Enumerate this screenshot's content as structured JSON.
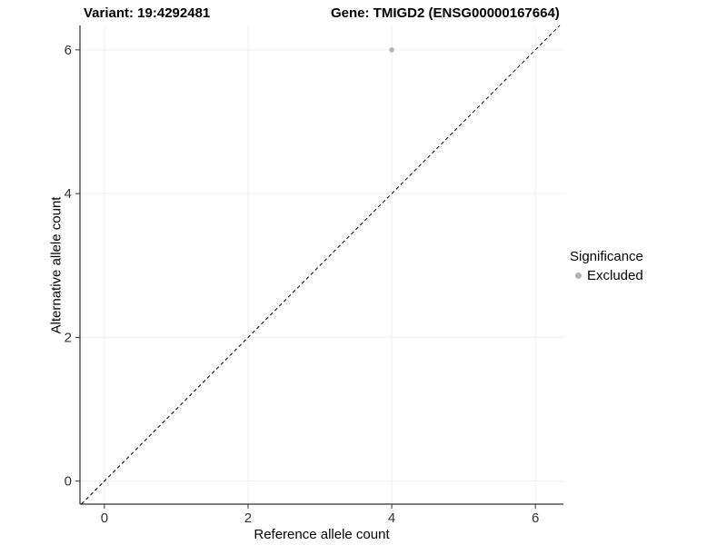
{
  "chart_data": {
    "type": "scatter",
    "titles": {
      "left": "Variant: 19:4292481",
      "right": "Gene: TMIGD2 (ENSG00000167664)"
    },
    "xlabel": "Reference allele count",
    "ylabel": "Alternative allele count",
    "xlim": [
      -0.34,
      6.39
    ],
    "ylim": [
      -0.32,
      6.34
    ],
    "xticks": [
      0,
      2,
      4,
      6
    ],
    "yticks": [
      0,
      2,
      4,
      6
    ],
    "grid": true,
    "grid_color": "#f0f0f0",
    "identity_line": {
      "present": true,
      "style": "dashed",
      "color": "#000000"
    },
    "series": [
      {
        "name": "Excluded",
        "color": "#b3b3b3",
        "points": [
          {
            "x": 4,
            "y": 6
          }
        ]
      }
    ],
    "legend": {
      "title": "Significance",
      "position": "right",
      "entries": [
        {
          "label": "Excluded",
          "color": "#b3b3b3"
        }
      ]
    }
  }
}
